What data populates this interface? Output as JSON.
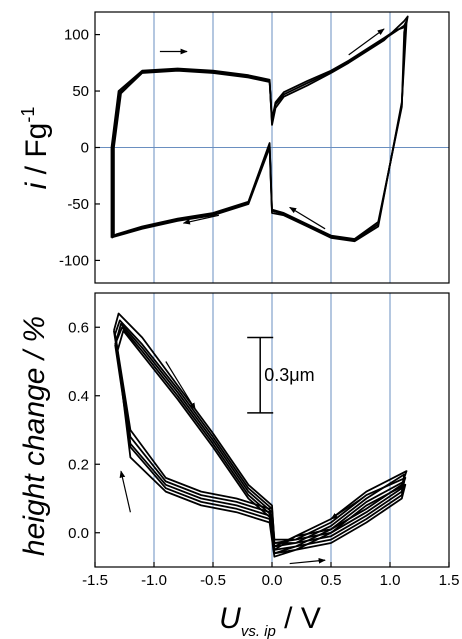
{
  "chart_data": [
    {
      "type": "line",
      "panel": "top",
      "ylabel": {
        "italic": "i",
        "rest": " / Fg",
        "superscript": "-1"
      },
      "xlim": [
        -1.5,
        1.5
      ],
      "ylim": [
        -120,
        120
      ],
      "yticks": [
        -100,
        -50,
        0,
        50,
        100
      ],
      "ytick_labels": [
        "-100",
        "-50",
        "0",
        "50",
        "100"
      ],
      "xgrid": [
        -1.0,
        -0.5,
        0.0,
        0.5,
        1.0
      ],
      "hline": 0,
      "grid_color": "#6a8fc0",
      "series": [
        {
          "x": [
            -1.36,
            -1.36,
            -1.3,
            -1.1,
            -0.8,
            -0.5,
            -0.2,
            -0.02,
            0.0,
            0.03,
            0.1,
            0.3,
            0.5,
            0.65,
            0.8,
            0.95,
            1.05,
            1.12,
            1.15,
            1.14,
            1.1,
            0.9,
            0.7,
            0.5,
            0.3,
            0.1,
            0.0,
            -0.01,
            -0.02,
            -0.2,
            -0.5,
            -0.8,
            -1.1,
            -1.34,
            -1.36
          ],
          "y": [
            -80,
            0,
            50,
            68,
            70,
            68,
            64,
            60,
            20,
            35,
            45,
            55,
            66,
            75,
            85,
            95,
            105,
            112,
            116,
            110,
            40,
            -70,
            -83,
            -80,
            -70,
            -60,
            -58,
            -30,
            0,
            -50,
            -60,
            -65,
            -72,
            -79,
            -80
          ]
        },
        {
          "x": [
            -1.35,
            -1.35,
            -1.29,
            -1.1,
            -0.8,
            -0.5,
            -0.2,
            -0.02,
            0.0,
            0.03,
            0.1,
            0.3,
            0.5,
            0.65,
            0.8,
            0.95,
            1.05,
            1.12,
            1.14,
            1.13,
            1.1,
            0.9,
            0.7,
            0.5,
            0.3,
            0.1,
            0.0,
            -0.01,
            -0.02,
            -0.2,
            -0.5,
            -0.8,
            -1.1,
            -1.33,
            -1.35
          ],
          "y": [
            -79,
            0,
            49,
            67,
            69,
            67,
            63,
            59,
            22,
            38,
            47,
            57,
            67,
            76,
            86,
            96,
            103,
            108,
            112,
            106,
            38,
            -68,
            -82,
            -79,
            -69,
            -59,
            -56,
            -28,
            2,
            -49,
            -59,
            -64,
            -71,
            -78,
            -79
          ]
        },
        {
          "x": [
            -1.34,
            -1.34,
            -1.28,
            -1.1,
            -0.8,
            -0.5,
            -0.2,
            -0.02,
            0.0,
            0.03,
            0.1,
            0.3,
            0.5,
            0.65,
            0.8,
            0.95,
            1.05,
            1.11,
            1.13,
            1.12,
            1.1,
            0.9,
            0.7,
            0.5,
            0.3,
            0.1,
            0.0,
            -0.01,
            -0.02,
            -0.2,
            -0.5,
            -0.8,
            -1.1,
            -1.32,
            -1.34
          ],
          "y": [
            -78,
            0,
            48,
            66,
            68,
            66,
            62,
            58,
            25,
            40,
            49,
            59,
            68,
            77,
            87,
            97,
            104,
            106,
            108,
            102,
            36,
            -66,
            -81,
            -78,
            -68,
            -58,
            -55,
            -26,
            4,
            -48,
            -58,
            -63,
            -70,
            -77,
            -78
          ]
        }
      ],
      "arrows": [
        {
          "from": [
            -0.95,
            85
          ],
          "to": [
            -0.72,
            85
          ]
        },
        {
          "from": [
            0.65,
            82
          ],
          "to": [
            0.95,
            105
          ]
        },
        {
          "from": [
            -0.45,
            -60
          ],
          "to": [
            -0.75,
            -67
          ]
        },
        {
          "from": [
            0.45,
            -72
          ],
          "to": [
            0.15,
            -53
          ]
        }
      ]
    },
    {
      "type": "line",
      "panel": "bottom",
      "ylabel": "height change / %",
      "xlabel": {
        "italic": "U",
        "subscript": "vs. ip",
        "rest": " / V"
      },
      "xlim": [
        -1.5,
        1.5
      ],
      "ylim": [
        -0.1,
        0.7
      ],
      "yticks": [
        0.0,
        0.2,
        0.4,
        0.6
      ],
      "ytick_labels": [
        "0.0",
        "0.2",
        "0.4",
        "0.6"
      ],
      "xticks": [
        -1.5,
        -1.0,
        -0.5,
        0.0,
        0.5,
        1.0,
        1.5
      ],
      "xtick_labels": [
        "-1.5",
        "-1.0",
        "-0.5",
        "0.0",
        "0.5",
        "1.0",
        "1.5"
      ],
      "xgrid": [
        -1.0,
        -0.5,
        0.0,
        0.5,
        1.0
      ],
      "grid_color": "#6a8fc0",
      "series": [
        {
          "x": [
            -1.34,
            -1.3,
            -1.1,
            -0.8,
            -0.5,
            -0.2,
            0.0,
            0.02,
            0.2,
            0.5,
            0.8,
            1.1,
            1.12,
            0.8,
            0.5,
            0.2,
            0.02,
            -0.02,
            -0.3,
            -0.6,
            -0.9,
            -1.2,
            -1.34
          ],
          "y": [
            0.59,
            0.64,
            0.57,
            0.43,
            0.29,
            0.14,
            0.08,
            -0.03,
            -0.03,
            -0.01,
            0.05,
            0.12,
            0.17,
            0.1,
            0.02,
            -0.03,
            -0.04,
            0.06,
            0.09,
            0.11,
            0.15,
            0.28,
            0.59
          ]
        },
        {
          "x": [
            -1.33,
            -1.29,
            -1.1,
            -0.8,
            -0.5,
            -0.2,
            0.0,
            0.02,
            0.2,
            0.5,
            0.8,
            1.1,
            1.13,
            0.8,
            0.5,
            0.2,
            0.02,
            -0.02,
            -0.3,
            -0.6,
            -0.9,
            -1.2,
            -1.33
          ],
          "y": [
            0.58,
            0.62,
            0.55,
            0.42,
            0.28,
            0.13,
            0.07,
            -0.02,
            -0.02,
            0.0,
            0.06,
            0.13,
            0.16,
            0.11,
            0.03,
            -0.02,
            -0.03,
            0.07,
            0.1,
            0.12,
            0.16,
            0.3,
            0.58
          ]
        },
        {
          "x": [
            -1.32,
            -1.28,
            -1.1,
            -0.8,
            -0.5,
            -0.2,
            0.0,
            0.02,
            0.2,
            0.5,
            0.8,
            1.1,
            1.14,
            0.8,
            0.5,
            0.2,
            0.02,
            -0.02,
            -0.3,
            -0.6,
            -0.9,
            -1.2,
            -1.32
          ],
          "y": [
            0.56,
            0.61,
            0.54,
            0.41,
            0.27,
            0.12,
            0.06,
            -0.04,
            -0.01,
            0.01,
            0.07,
            0.14,
            0.18,
            0.12,
            0.04,
            -0.01,
            -0.05,
            0.05,
            0.08,
            0.1,
            0.14,
            0.26,
            0.56
          ]
        },
        {
          "x": [
            -1.33,
            -1.27,
            -1.1,
            -0.8,
            -0.5,
            -0.2,
            0.0,
            0.02,
            0.2,
            0.5,
            0.8,
            1.1,
            1.12,
            0.8,
            0.5,
            0.2,
            0.02,
            -0.02,
            -0.3,
            -0.6,
            -0.9,
            -1.2,
            -1.33
          ],
          "y": [
            0.55,
            0.6,
            0.53,
            0.4,
            0.26,
            0.11,
            0.05,
            -0.05,
            -0.04,
            -0.02,
            0.04,
            0.11,
            0.15,
            0.09,
            0.01,
            -0.04,
            -0.06,
            0.04,
            0.07,
            0.09,
            0.13,
            0.25,
            0.55
          ]
        },
        {
          "x": [
            -1.31,
            -1.26,
            -1.1,
            -0.8,
            -0.5,
            -0.2,
            0.0,
            0.02,
            0.2,
            0.5,
            0.8,
            1.1,
            1.13,
            0.8,
            0.5,
            0.2,
            0.02,
            -0.02,
            -0.3,
            -0.6,
            -0.9,
            -1.2,
            -1.31
          ],
          "y": [
            0.53,
            0.59,
            0.52,
            0.39,
            0.25,
            0.1,
            0.04,
            -0.06,
            -0.05,
            -0.03,
            0.03,
            0.1,
            0.14,
            0.08,
            0.0,
            -0.05,
            -0.07,
            0.03,
            0.06,
            0.08,
            0.12,
            0.22,
            0.53
          ]
        }
      ],
      "arrows": [
        {
          "from": [
            -0.9,
            0.5
          ],
          "to": [
            -0.65,
            0.36
          ]
        },
        {
          "from": [
            -1.2,
            0.06
          ],
          "to": [
            -1.28,
            0.18
          ]
        },
        {
          "from": [
            0.8,
            0.11
          ],
          "to": [
            0.5,
            0.04
          ]
        },
        {
          "from": [
            0.15,
            -0.09
          ],
          "to": [
            0.45,
            -0.08
          ]
        }
      ],
      "scale_bar": {
        "label": "0.3μm",
        "x": -0.1,
        "y_top": 0.57,
        "y_bottom": 0.35
      }
    }
  ]
}
